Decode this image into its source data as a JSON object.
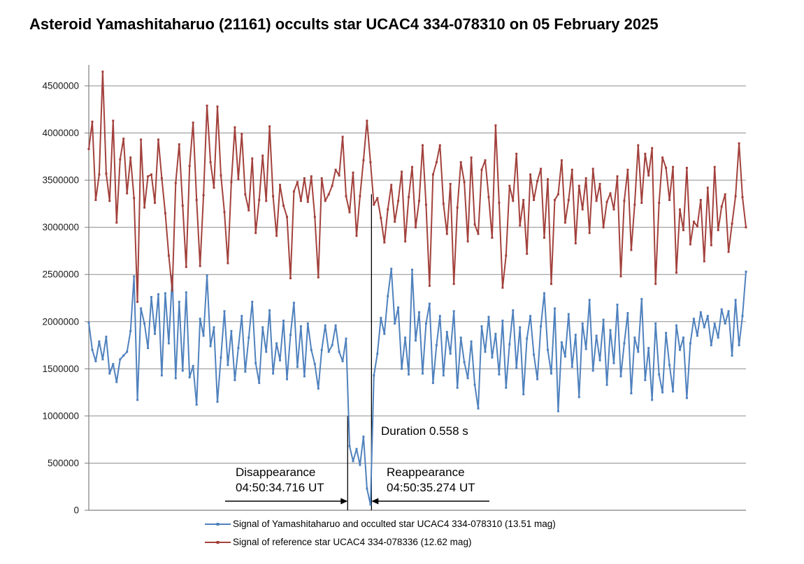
{
  "title": "Asteroid Yamashitaharuo (21161) occults star UCAC4 334-078310 on 05 February 2025",
  "annotations": {
    "duration": "Duration 0.558 s",
    "disappearance_title": "Disappearance",
    "disappearance_time": "04:50:34.716 UT",
    "reappearance_title": "Reappearance",
    "reappearance_time": "04:50:35.274 UT"
  },
  "legend": {
    "items": [
      {
        "label": "Signal of Yamashitaharuo and occulted star UCAC4 334-078310 (13.51 mag)",
        "color": "#4f81bd"
      },
      {
        "label": "Signal of reference star UCAC4 334-078336 (12.62 mag)",
        "color": "#a2413c"
      }
    ]
  },
  "colors": {
    "blue": "#4f81bd",
    "red": "#a2413c",
    "grid": "#8e8e8e",
    "axis": "#7f7f7f",
    "tick_text": "#1a1a1a",
    "annotation": "#000000"
  },
  "chart_data": {
    "type": "line",
    "title": "Asteroid Yamashitaharuo (21161) occults star UCAC4 334-078310 on 05 February 2025",
    "xlabel": "",
    "ylabel": "",
    "x_tick_labels_visible": false,
    "grid": "horizontal",
    "legend_position": "bottom",
    "yaxis": {
      "ticks": [
        0,
        500000,
        1000000,
        1500000,
        2000000,
        2500000,
        3000000,
        3500000,
        4000000,
        4500000
      ],
      "range_plotted": [
        0,
        4680000
      ]
    },
    "events": {
      "duration_s": 0.558,
      "disappearance": {
        "time_ut": "04:50:34.716",
        "index": 74.45,
        "line_top_value": 1000000
      },
      "reappearance": {
        "time_ut": "04:50:35.274",
        "index": 81.3,
        "line_top_value": 3350000
      },
      "arrow_value_level": 90000,
      "left_arrow_start_index": 39.2,
      "right_arrow_end_index": 115.2
    },
    "series": [
      {
        "name": "Signal of Yamashitaharuo and occulted star UCAC4 334-078310 (13.51 mag)",
        "color": "#4f81bd",
        "values": [
          1990000,
          1700000,
          1580000,
          1790000,
          1600000,
          1840000,
          1450000,
          1550000,
          1360000,
          1600000,
          1640000,
          1680000,
          1900000,
          2480000,
          1170000,
          2140000,
          1980000,
          1720000,
          2260000,
          1870000,
          2290000,
          1430000,
          2300000,
          1770000,
          2480000,
          1400000,
          2210000,
          1480000,
          2310000,
          1410000,
          1530000,
          1120000,
          2030000,
          1850000,
          2490000,
          1740000,
          1940000,
          1150000,
          1620000,
          2110000,
          1540000,
          1900000,
          1380000,
          1720000,
          2060000,
          1470000,
          1830000,
          2210000,
          1560000,
          1350000,
          1940000,
          1680000,
          2120000,
          1450000,
          1770000,
          1590000,
          2010000,
          1390000,
          1860000,
          2200000,
          1520000,
          1950000,
          1420000,
          1980000,
          1700000,
          1550000,
          1290000,
          1700000,
          1960000,
          1680000,
          1750000,
          1960000,
          1680000,
          1580000,
          1820000,
          680000,
          520000,
          650000,
          480000,
          780000,
          230000,
          60000,
          1430000,
          1660000,
          2040000,
          1870000,
          2270000,
          2560000,
          1980000,
          2150000,
          1500000,
          1830000,
          1440000,
          2550000,
          1800000,
          2100000,
          1450000,
          1980000,
          2190000,
          1350000,
          1750000,
          2060000,
          1430000,
          1890000,
          1660000,
          2110000,
          1300000,
          1830000,
          1570000,
          1400000,
          1790000,
          1330000,
          1080000,
          1950000,
          1680000,
          2050000,
          1620000,
          1870000,
          1440000,
          2010000,
          1300000,
          1760000,
          2120000,
          1510000,
          1940000,
          1230000,
          1820000,
          2060000,
          1650000,
          1390000,
          1950000,
          2300000,
          1700000,
          1450000,
          2140000,
          1050000,
          1780000,
          1630000,
          2080000,
          1520000,
          1860000,
          1200000,
          1980000,
          1710000,
          2230000,
          1480000,
          1850000,
          1590000,
          2020000,
          1330000,
          1910000,
          1560000,
          2180000,
          1420000,
          1770000,
          2090000,
          1240000,
          1830000,
          1680000,
          2240000,
          1380000,
          1720000,
          1170000,
          1980000,
          1440000,
          1250000,
          1880000,
          1540000,
          1260000,
          1960000,
          1700000,
          1830000,
          1190000,
          1770000,
          2030000,
          1850000,
          2100000,
          1940000,
          2060000,
          1750000,
          1980000,
          1830000,
          2130000,
          1980000,
          2110000,
          1640000,
          2230000,
          1750000,
          2060000,
          2530000
        ]
      },
      {
        "name": "Signal of reference star UCAC4 334-078336 (12.62 mag)",
        "color": "#a2413c",
        "values": [
          3830000,
          4120000,
          3290000,
          3560000,
          4650000,
          3570000,
          3280000,
          4130000,
          3050000,
          3720000,
          3940000,
          3360000,
          3740000,
          3310000,
          2210000,
          3930000,
          3210000,
          3540000,
          3560000,
          3260000,
          3930000,
          3520000,
          3150000,
          2700000,
          2330000,
          3470000,
          3880000,
          3230000,
          2580000,
          3650000,
          4110000,
          3290000,
          2590000,
          3340000,
          4290000,
          3690000,
          3420000,
          4280000,
          3550000,
          3160000,
          2620000,
          3480000,
          4060000,
          3510000,
          3990000,
          3350000,
          3180000,
          3730000,
          2940000,
          3290000,
          3760000,
          3280000,
          4070000,
          3330000,
          2910000,
          3450000,
          3230000,
          3110000,
          2460000,
          3380000,
          3480000,
          3280000,
          3520000,
          3270000,
          3540000,
          3110000,
          2470000,
          3520000,
          3280000,
          3350000,
          3440000,
          3610000,
          3550000,
          3960000,
          3330000,
          3160000,
          3580000,
          2910000,
          3330000,
          3710000,
          4130000,
          3690000,
          3240000,
          3310000,
          3100000,
          2840000,
          3190000,
          3450000,
          3060000,
          3280000,
          3590000,
          2850000,
          3320000,
          3640000,
          3000000,
          3280000,
          3870000,
          3240000,
          2380000,
          3560000,
          3690000,
          3870000,
          3250000,
          2930000,
          3460000,
          2400000,
          3210000,
          3690000,
          3480000,
          2850000,
          3740000,
          3030000,
          2930000,
          3610000,
          3710000,
          3320000,
          2890000,
          4080000,
          3260000,
          2360000,
          2700000,
          3440000,
          3280000,
          3780000,
          3020000,
          3290000,
          2720000,
          3560000,
          3290000,
          3490000,
          3620000,
          2890000,
          3510000,
          2400000,
          3290000,
          3350000,
          3710000,
          3050000,
          3290000,
          3610000,
          2830000,
          3440000,
          3190000,
          3520000,
          2940000,
          3620000,
          3280000,
          3460000,
          3000000,
          3270000,
          3360000,
          3190000,
          3540000,
          2480000,
          3280000,
          3610000,
          2760000,
          3240000,
          3870000,
          3260000,
          3780000,
          3550000,
          3840000,
          2400000,
          3260000,
          3740000,
          3630000,
          3290000,
          3640000,
          2520000,
          3190000,
          2970000,
          3630000,
          2820000,
          3060000,
          3010000,
          3290000,
          2640000,
          3420000,
          2810000,
          3640000,
          2970000,
          3220000,
          3350000,
          2740000,
          3040000,
          3330000,
          3890000,
          3320000,
          3000000
        ]
      }
    ]
  }
}
